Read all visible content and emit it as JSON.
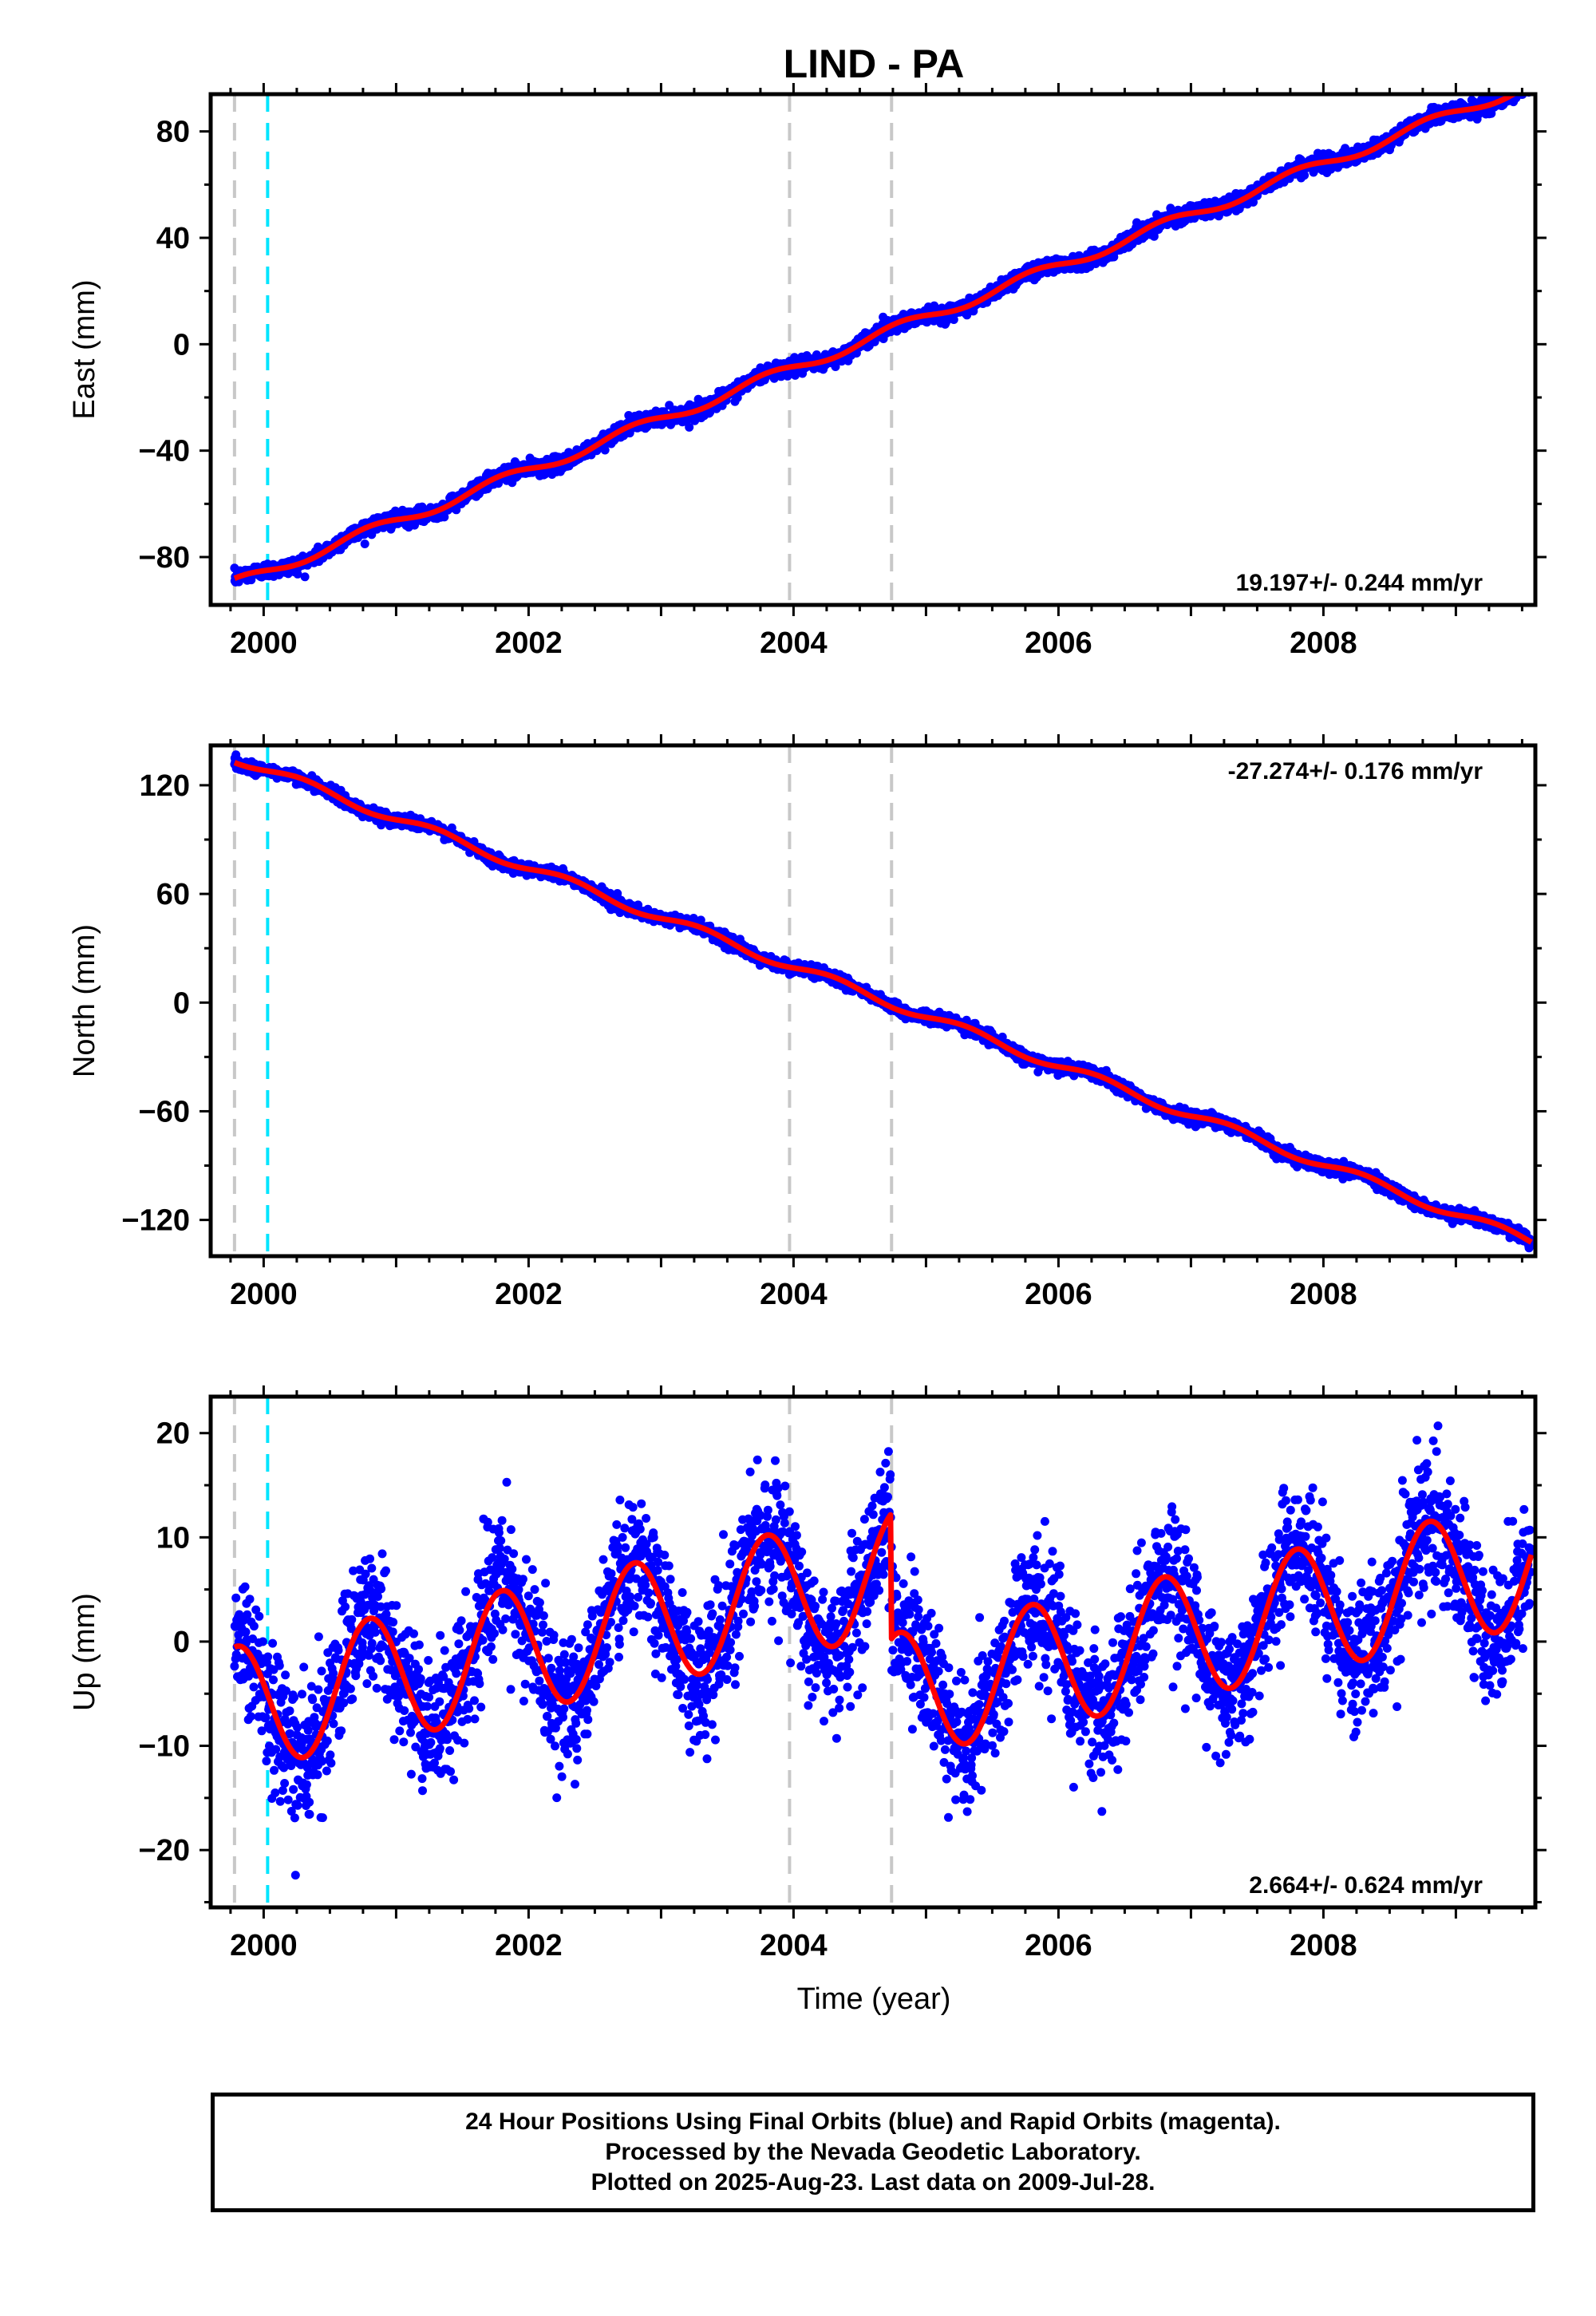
{
  "figure": {
    "title": "LIND - PA",
    "xlabel": "Time (year)"
  },
  "colors": {
    "final_orbits_points": "#0000ff",
    "model_fit": "#ff0000",
    "equipment_change_line": "#c8c8c8",
    "earthquake_line": "#00e5ff",
    "frame": "#000000"
  },
  "chart_data": [
    {
      "type": "scatter",
      "panel": "east",
      "ylabel": "East (mm)",
      "ylim": [
        -98,
        94
      ],
      "xlim": [
        1999.6,
        2009.6
      ],
      "yticks": [
        -80,
        -40,
        0,
        40,
        80
      ],
      "xticks": [
        2000,
        2002,
        2004,
        2006,
        2008
      ],
      "rate_label": "19.197+/- 0.244 mm/yr",
      "rate_position": "bottom-right",
      "data_range": [
        1999.78,
        2009.57
      ],
      "model": {
        "trend_mm_per_yr": 19.197,
        "intercept_at_1999_78": -90,
        "seasonal_amplitude": 2.0,
        "seasonal_phase_peak": 0.8,
        "offsets": []
      },
      "scatter_sigma": 1.4,
      "vlines_dashed_gray": [
        1999.78,
        2003.97,
        2004.74
      ],
      "vlines_dashed_cyan": [
        2000.03
      ],
      "series": [
        {
          "name": "24 Hour Positions"
        },
        {
          "name": "Model"
        }
      ]
    },
    {
      "type": "scatter",
      "panel": "north",
      "ylabel": "North (mm)",
      "ylim": [
        -140,
        142
      ],
      "xlim": [
        1999.6,
        2009.6
      ],
      "yticks": [
        -120,
        -60,
        0,
        60,
        120
      ],
      "xticks": [
        2000,
        2002,
        2004,
        2006,
        2008
      ],
      "rate_label": "-27.274+/- 0.176 mm/yr",
      "rate_position": "top-right",
      "data_range": [
        1999.78,
        2009.57
      ],
      "model": {
        "trend_mm_per_yr": -27.274,
        "intercept_at_1999_78": 135,
        "seasonal_amplitude": 2.5,
        "seasonal_phase_peak": 0.3,
        "offsets": []
      },
      "scatter_sigma": 1.6,
      "vlines_dashed_gray": [
        1999.78,
        2003.97,
        2004.74
      ],
      "vlines_dashed_cyan": [
        2000.03
      ],
      "series": [
        {
          "name": "24 Hour Positions"
        },
        {
          "name": "Model"
        }
      ]
    },
    {
      "type": "scatter",
      "panel": "up",
      "ylabel": "Up (mm)",
      "ylim": [
        -25.5,
        23.5
      ],
      "xlim": [
        1999.6,
        2009.6
      ],
      "yticks": [
        -20,
        -10,
        0,
        10,
        20
      ],
      "xticks": [
        2000,
        2002,
        2004,
        2006,
        2008
      ],
      "rate_label": "2.664+/- 0.624 mm/yr",
      "rate_position": "bottom-right",
      "data_range": [
        1999.78,
        2009.57
      ],
      "model": {
        "trend_mm_per_yr": 2.664,
        "intercept_at_1999_78": -6.5,
        "seasonal_amplitude": 6.0,
        "seasonal_phase_peak": 0.8,
        "offsets": [
          {
            "epoch": 2004.74,
            "jump_mm": -12.0
          }
        ]
      },
      "scatter_sigma": 3.2,
      "vlines_dashed_gray": [
        1999.78,
        2003.97,
        2004.74
      ],
      "vlines_dashed_cyan": [
        2000.03
      ],
      "series": [
        {
          "name": "24 Hour Positions"
        },
        {
          "name": "Model"
        }
      ]
    }
  ],
  "footer": {
    "line1": "24 Hour Positions Using Final Orbits (blue) and Rapid Orbits (magenta).",
    "line2": "Processed by the Nevada Geodetic Laboratory.",
    "line3": "Plotted on 2025-Aug-23. Last data on 2009-Jul-28."
  }
}
